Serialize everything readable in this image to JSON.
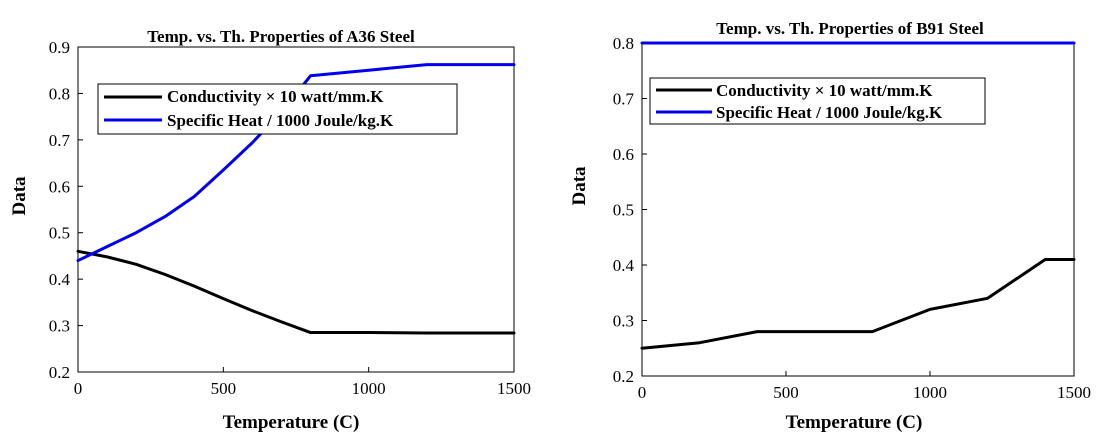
{
  "chart_data": [
    {
      "type": "line",
      "title": "Temp. vs. Th. Properties of A36 Steel",
      "xlabel": "Temperature (C)",
      "ylabel": "Data",
      "xlim": [
        0,
        1500
      ],
      "ylim": [
        0.2,
        0.9
      ],
      "xticks": [
        0,
        500,
        1000,
        1500
      ],
      "yticks": [
        0.2,
        0.3,
        0.4,
        0.5,
        0.6,
        0.7,
        0.8,
        0.9
      ],
      "grid": false,
      "legend_position": "top-left",
      "series": [
        {
          "name": "Conductivity × 10 watt/mm.K",
          "color": "#000000",
          "x": [
            0,
            100,
            200,
            300,
            400,
            500,
            600,
            700,
            800,
            1000,
            1200,
            1500
          ],
          "y": [
            0.46,
            0.448,
            0.432,
            0.41,
            0.385,
            0.358,
            0.332,
            0.308,
            0.285,
            0.285,
            0.284,
            0.284
          ]
        },
        {
          "name": "Specific Heat / 1000 Joule/kg.K",
          "color": "#0000ee",
          "x": [
            0,
            100,
            200,
            300,
            400,
            500,
            600,
            700,
            800,
            1000,
            1200,
            1500
          ],
          "y": [
            0.44,
            0.47,
            0.5,
            0.535,
            0.578,
            0.635,
            0.694,
            0.76,
            0.838,
            0.85,
            0.862,
            0.862
          ]
        }
      ]
    },
    {
      "type": "line",
      "title": "Temp. vs. Th. Properties of B91 Steel",
      "xlabel": "Temperature (C)",
      "ylabel": "Data",
      "xlim": [
        0,
        1500
      ],
      "ylim": [
        0.2,
        0.8
      ],
      "xticks": [
        0,
        500,
        1000,
        1500
      ],
      "yticks": [
        0.2,
        0.3,
        0.4,
        0.5,
        0.6,
        0.7,
        0.8
      ],
      "grid": false,
      "legend_position": "top-left",
      "series": [
        {
          "name": "Conductivity × 10 watt/mm.K",
          "color": "#000000",
          "x": [
            0,
            200,
            400,
            600,
            800,
            1000,
            1200,
            1400,
            1500
          ],
          "y": [
            0.25,
            0.26,
            0.28,
            0.28,
            0.28,
            0.32,
            0.34,
            0.41,
            0.41
          ]
        },
        {
          "name": "Specific Heat / 1000 Joule/kg.K",
          "color": "#0000ee",
          "x": [
            0,
            500,
            1000,
            1500
          ],
          "y": [
            0.8,
            0.8,
            0.8,
            0.8
          ]
        }
      ]
    }
  ]
}
